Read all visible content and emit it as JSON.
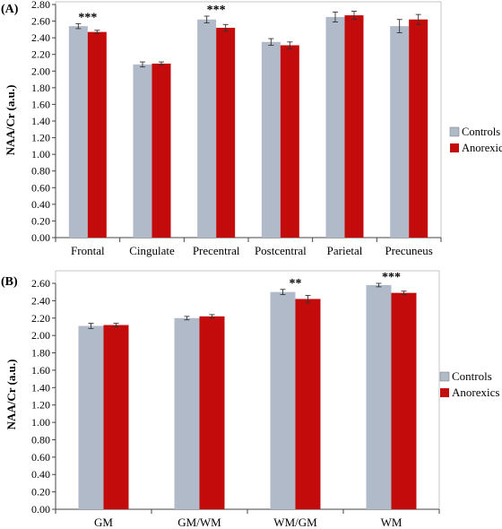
{
  "colors": {
    "controls": "#b1bac9",
    "anorexics": "#c30b0b",
    "axis": "#444444",
    "errorbar": "#333333"
  },
  "chart_data": [
    {
      "panel_label": "(A)",
      "type": "bar",
      "ylabel": "NAA/Cr (a.u.)",
      "ylim": [
        0,
        2.8
      ],
      "ytick_step": 0.2,
      "yticks": [
        "0.00",
        "0.20",
        "0.40",
        "0.60",
        "0.80",
        "1.00",
        "1.20",
        "1.40",
        "1.60",
        "1.80",
        "2.00",
        "2.20",
        "2.40",
        "2.60",
        "2.80"
      ],
      "categories": [
        "Frontal",
        "Cingulate",
        "Precentral",
        "Postcentral",
        "Parietal",
        "Precuneus"
      ],
      "series": [
        {
          "name": "Controls",
          "color": "#b1bac9",
          "values": [
            2.54,
            2.08,
            2.62,
            2.35,
            2.65,
            2.54
          ],
          "errors": [
            0.03,
            0.03,
            0.04,
            0.04,
            0.06,
            0.08
          ]
        },
        {
          "name": "Anorexics",
          "color": "#c30b0b",
          "values": [
            2.47,
            2.09,
            2.52,
            2.31,
            2.67,
            2.62
          ],
          "errors": [
            0.02,
            0.02,
            0.04,
            0.04,
            0.05,
            0.06
          ]
        }
      ],
      "annotations": [
        {
          "category": "Frontal",
          "text": "***"
        },
        {
          "category": "Precentral",
          "text": "***"
        }
      ],
      "legend": "right",
      "grid": false
    },
    {
      "panel_label": "(B)",
      "type": "bar",
      "ylabel": "NAA/Cr (a.u.)",
      "ylim": [
        0,
        2.6
      ],
      "ytick_step": 0.2,
      "yticks": [
        "0.00",
        "0.20",
        "0.40",
        "0.60",
        "0.80",
        "1.00",
        "1.20",
        "1.40",
        "1.60",
        "1.80",
        "2.00",
        "2.20",
        "2.40",
        "2.60"
      ],
      "categories": [
        "GM",
        "GM/WM",
        "WM/GM",
        "WM"
      ],
      "series": [
        {
          "name": "Controls",
          "color": "#b1bac9",
          "values": [
            2.11,
            2.2,
            2.5,
            2.58
          ],
          "errors": [
            0.03,
            0.02,
            0.03,
            0.02
          ]
        },
        {
          "name": "Anorexics",
          "color": "#c30b0b",
          "values": [
            2.12,
            2.22,
            2.42,
            2.49
          ],
          "errors": [
            0.02,
            0.02,
            0.04,
            0.02
          ]
        }
      ],
      "annotations": [
        {
          "category": "WM/GM",
          "text": "**"
        },
        {
          "category": "WM",
          "text": "***"
        }
      ],
      "legend": "right",
      "grid": false
    }
  ]
}
